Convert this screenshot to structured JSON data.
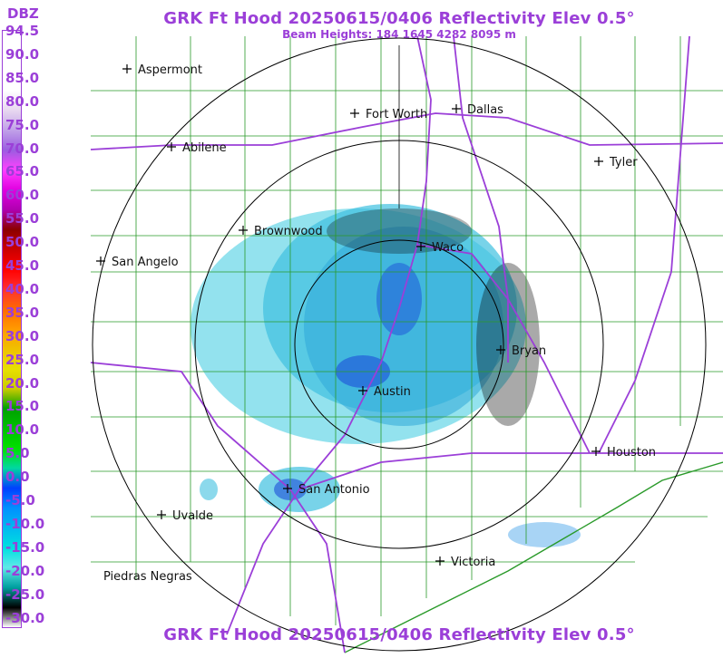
{
  "title": "GRK Ft Hood 20250615/0406 Reflectivity Elev 0.5°",
  "beam_heights": "Beam Heights: 184 1645 4282 8095 m",
  "legend": {
    "unit": "DBZ",
    "labels": [
      "94.5",
      "90.0",
      "85.0",
      "80.0",
      "75.0",
      "70.0",
      "65.0",
      "60.0",
      "55.0",
      "50.0",
      "45.0",
      "40.0",
      "35.0",
      "30.0",
      "25.0",
      "20.0",
      "15.0",
      "10.0",
      "5.0",
      "0.0",
      "-5.0",
      "-10.0",
      "-15.0",
      "-20.0",
      "-25.0",
      "-30.0"
    ],
    "colors": [
      "#ffffff",
      "#ffffff",
      "#ffffff",
      "#ffffff",
      "#e8d8f0",
      "#c0a0e8",
      "#9b5de0",
      "#ff40ff",
      "#e000e0",
      "#b000b0",
      "#8b0000",
      "#cc0000",
      "#ff0000",
      "#ff3030",
      "#ff6a00",
      "#ff9a00",
      "#f0c000",
      "#e8e000",
      "#cccc00",
      "#00a000",
      "#00c000",
      "#00e000",
      "#00d8a0",
      "#0040ff",
      "#0090ff",
      "#00b8f0",
      "#00e0e0",
      "#60e8e8",
      "#00a0a0",
      "#000000",
      "#ffffff"
    ]
  },
  "cities": [
    {
      "name": "Aspermont"
    },
    {
      "name": "Fort Worth"
    },
    {
      "name": "Dallas"
    },
    {
      "name": "Abilene"
    },
    {
      "name": "Tyler"
    },
    {
      "name": "Brownwood"
    },
    {
      "name": "Waco"
    },
    {
      "name": "San Angelo"
    },
    {
      "name": "Bryan"
    },
    {
      "name": "Austin"
    },
    {
      "name": "Houston"
    },
    {
      "name": "San Antonio"
    },
    {
      "name": "Uvalde"
    },
    {
      "name": "Victoria"
    },
    {
      "name": "Piedras Negras"
    }
  ],
  "colors": {
    "title": "#9b3fd8",
    "highway": "#9b3fd8",
    "county": "#2a9a2a",
    "range_ring": "#000000"
  }
}
